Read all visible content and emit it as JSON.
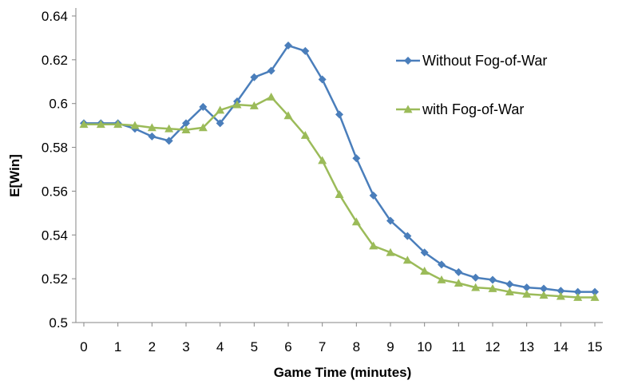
{
  "chart_data": {
    "type": "line",
    "xlabel": "Game Time (minutes)",
    "ylabel": "E[Win]",
    "xlim": [
      0,
      15
    ],
    "ylim": [
      0.5,
      0.64
    ],
    "x_ticks": [
      "0",
      "1",
      "2",
      "3",
      "4",
      "5",
      "6",
      "7",
      "8",
      "9",
      "10",
      "11",
      "12",
      "13",
      "14",
      "15"
    ],
    "y_ticks": [
      "0.5",
      "0.52",
      "0.54",
      "0.56",
      "0.58",
      "0.6",
      "0.62",
      "0.64"
    ],
    "legend_position": "right",
    "grid": false,
    "x": [
      0,
      0.5,
      1,
      1.5,
      2,
      2.5,
      3,
      3.5,
      4,
      4.5,
      5,
      5.5,
      6,
      6.5,
      7,
      7.5,
      8,
      8.5,
      9,
      9.5,
      10,
      10.5,
      11,
      11.5,
      12,
      12.5,
      13,
      13.5,
      14,
      14.5,
      15
    ],
    "series": [
      {
        "name": "Without Fog-of-War",
        "color": "#4A7EBB",
        "marker": "diamond",
        "values": [
          0.591,
          0.591,
          0.591,
          0.5885,
          0.585,
          0.583,
          0.591,
          0.5985,
          0.591,
          0.601,
          0.612,
          0.615,
          0.6265,
          0.624,
          0.611,
          0.595,
          0.575,
          0.558,
          0.5465,
          0.5395,
          0.532,
          0.5265,
          0.523,
          0.5205,
          0.5195,
          0.5175,
          0.516,
          0.5155,
          0.5145,
          0.514,
          0.514
        ]
      },
      {
        "name": "with Fog-of-War",
        "color": "#9BBB59",
        "marker": "triangle",
        "values": [
          0.5905,
          0.5905,
          0.5905,
          0.59,
          0.589,
          0.5885,
          0.588,
          0.589,
          0.597,
          0.5995,
          0.599,
          0.603,
          0.5945,
          0.5855,
          0.574,
          0.5585,
          0.546,
          0.535,
          0.532,
          0.5285,
          0.5235,
          0.5195,
          0.518,
          0.516,
          0.5155,
          0.514,
          0.513,
          0.5125,
          0.512,
          0.5115,
          0.5115
        ]
      }
    ]
  }
}
